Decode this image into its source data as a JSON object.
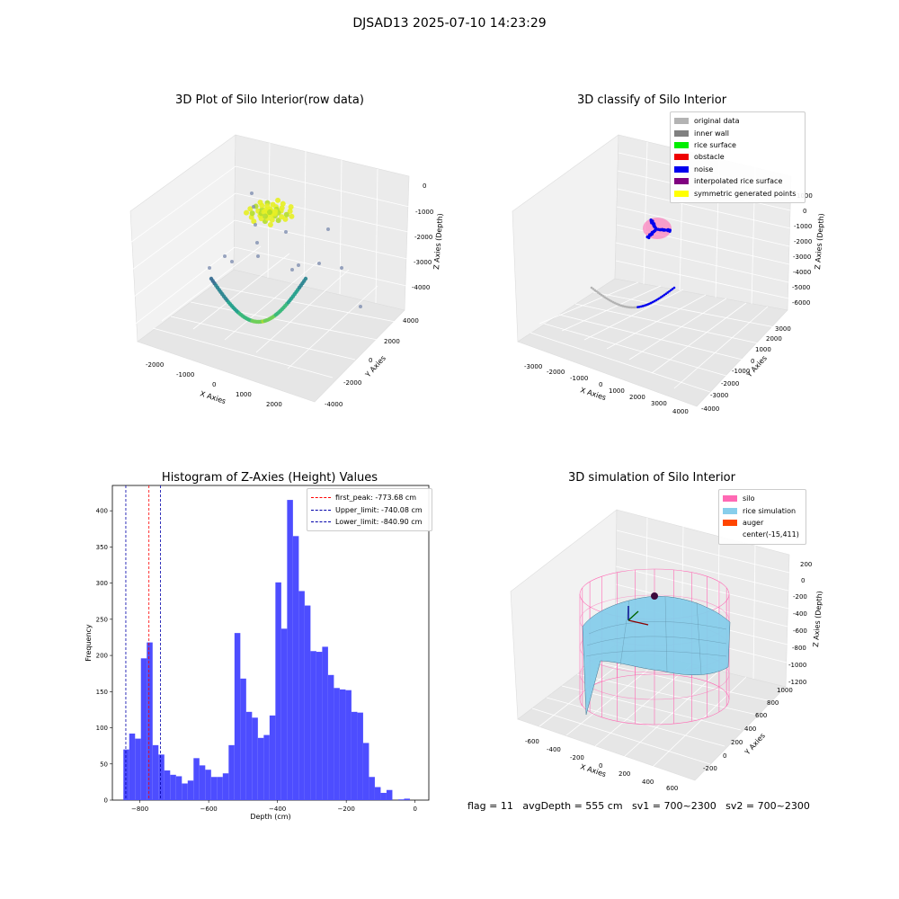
{
  "suptitle": "DJSAD13 2025-07-10 14:23:29",
  "panels": {
    "p1": {
      "title": "3D Plot of Silo Interior(row data)",
      "xlabel": "X Axies",
      "ylabel": "Y Axies",
      "zlabel": "Z Axies (Depth)",
      "xticks": [
        "-2000",
        "-1000",
        "0",
        "1000",
        "2000"
      ],
      "yticks": [
        "-4000",
        "-2000",
        "0",
        "2000",
        "4000"
      ],
      "zticks": [
        "0",
        "-1000",
        "-2000",
        "-3000",
        "-4000"
      ]
    },
    "p2": {
      "title": "3D classify of Silo Interior",
      "xlabel": "X Axies",
      "ylabel": "Y Axies",
      "zlabel": "Z Axies (Depth)",
      "xticks": [
        "-3000",
        "-2000",
        "-1000",
        "0",
        "1000",
        "2000",
        "3000",
        "4000"
      ],
      "yticks": [
        "-4000",
        "-3000",
        "-2000",
        "-1000",
        "0",
        "1000",
        "2000",
        "3000"
      ],
      "zticks": [
        "1000",
        "0",
        "-1000",
        "-2000",
        "-3000",
        "-4000",
        "-5000",
        "-6000"
      ],
      "legend": [
        {
          "label": "original data",
          "color": "#b3b3b3"
        },
        {
          "label": "inner wall",
          "color": "#808080"
        },
        {
          "label": "rice surface",
          "color": "#00ee00"
        },
        {
          "label": "obstacle",
          "color": "#ee0000"
        },
        {
          "label": "noise",
          "color": "#0000ee"
        },
        {
          "label": "interpolated rice surface",
          "color": "#800080"
        },
        {
          "label": "symmetric generated points",
          "color": "#ffff00"
        }
      ]
    },
    "p3": {
      "title": "Histogram of Z-Axies (Height) Values",
      "legend": [
        {
          "label": "first_peak: -773.68 cm",
          "color": "#ff0000"
        },
        {
          "label": "Upper_limit: -740.08 cm",
          "color": "#0000aa"
        },
        {
          "label": "Lower_limit: -840.90 cm",
          "color": "#0000aa"
        }
      ]
    },
    "p4": {
      "title": "3D simulation of Silo Interior",
      "xlabel": "X Axies",
      "ylabel": "Y Axies",
      "zlabel": "Z Axies (Depth)",
      "xticks": [
        "-600",
        "-400",
        "-200",
        "0",
        "200",
        "400",
        "600"
      ],
      "yticks": [
        "-200",
        "0",
        "200",
        "400",
        "600",
        "800",
        "1000"
      ],
      "zticks": [
        "200",
        "0",
        "-200",
        "-400",
        "-600",
        "-800",
        "-1000",
        "-1200"
      ],
      "legend": [
        {
          "label": "silo",
          "color": "#ff69b4"
        },
        {
          "label": "rice simulation",
          "color": "#87ceeb"
        },
        {
          "label": "auger",
          "color": "#ff4500"
        },
        {
          "label": "center(-15,411)",
          "color": ""
        }
      ]
    }
  },
  "status_text": "flag = 11   avgDepth = 555 cm   sv1 = 700~2300   sv2 = 700~2300",
  "chart_data": [
    {
      "type": "bar",
      "title": "Histogram of Z-Axies (Height) Values",
      "xlabel": "Depth (cm)",
      "ylabel": "Frequency",
      "xlim": [
        -880,
        40
      ],
      "ylim": [
        0,
        435
      ],
      "xticks": [
        -800,
        -600,
        -400,
        -200,
        0
      ],
      "yticks": [
        0,
        50,
        100,
        150,
        200,
        250,
        300,
        350,
        400
      ],
      "bin_width": 17,
      "bin_start": -848,
      "values": [
        70,
        92,
        85,
        196,
        218,
        76,
        63,
        41,
        35,
        33,
        23,
        27,
        58,
        48,
        42,
        32,
        32,
        37,
        76,
        231,
        168,
        122,
        114,
        86,
        90,
        117,
        301,
        237,
        415,
        365,
        289,
        269,
        206,
        205,
        212,
        173,
        155,
        153,
        152,
        122,
        121,
        79,
        32,
        18,
        10,
        14,
        0,
        1,
        2,
        0
      ],
      "vlines": [
        {
          "x": -773.68,
          "color": "#ff0000"
        },
        {
          "x": -740.08,
          "color": "#0000aa"
        },
        {
          "x": -840.9,
          "color": "#0000aa"
        }
      ],
      "color": "#4d4dff"
    }
  ]
}
